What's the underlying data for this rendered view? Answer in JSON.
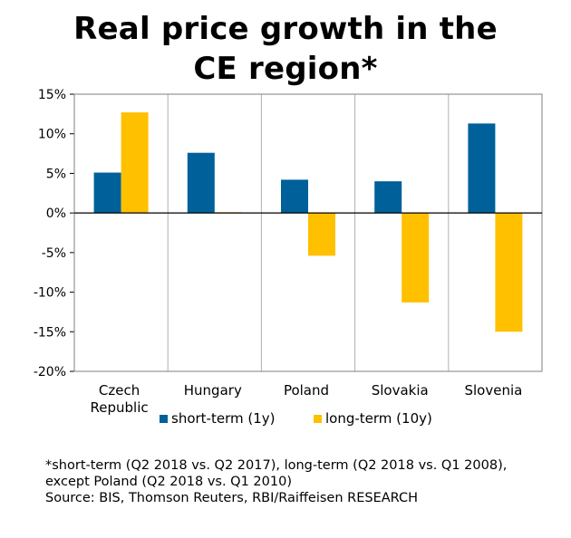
{
  "chart_data": {
    "type": "bar",
    "title_lines": [
      "Real price growth in the",
      "CE region*"
    ],
    "categories": [
      [
        "Czech",
        "Republic"
      ],
      [
        "Hungary"
      ],
      [
        "Poland"
      ],
      [
        "Slovakia"
      ],
      [
        "Slovenia"
      ]
    ],
    "series": [
      {
        "name": "short-term (1y)",
        "color": "#00609a",
        "values": [
          5.1,
          7.6,
          4.2,
          4.0,
          11.3
        ]
      },
      {
        "name": "long-term (10y)",
        "color": "#ffc000",
        "values": [
          12.7,
          0.1,
          -5.4,
          -11.3,
          -15.0
        ]
      }
    ],
    "ylim": [
      -20,
      15
    ],
    "yticks": [
      15,
      10,
      5,
      0,
      -5,
      -10,
      -15,
      -20
    ],
    "ytick_labels": [
      "15%",
      "10%",
      "5%",
      "0%",
      "-5%",
      "-10%",
      "-15%",
      "-20%"
    ],
    "grid": true,
    "legend_position": "bottom"
  },
  "footnote": {
    "lines": [
      "*short-term (Q2 2018 vs. Q2 2017), long-term (Q2 2018 vs. Q1 2008),",
      "except Poland (Q2 2018 vs. Q1 2010)",
      "Source: BIS, Thomson Reuters, RBI/Raiffeisen RESEARCH"
    ]
  }
}
